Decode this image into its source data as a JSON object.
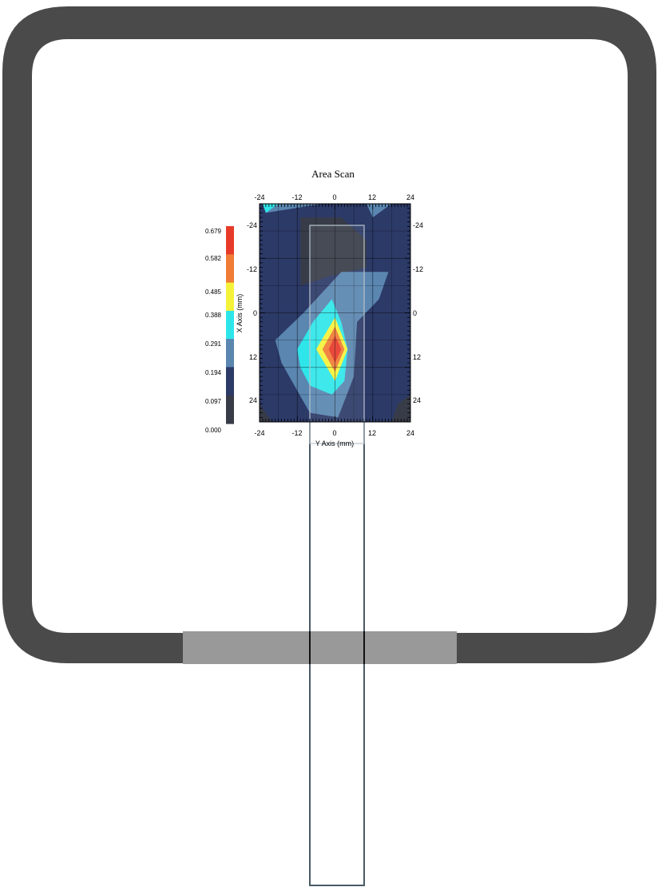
{
  "chart_data": {
    "type": "heatmap",
    "title": "Area Scan",
    "xlabel": "Y Axis (mm)",
    "ylabel": "X Axis (mm)",
    "xlim": [
      -24,
      24
    ],
    "ylim": [
      -24,
      24
    ],
    "x_ticks": [
      "-24",
      "-12",
      "0",
      "12",
      "24"
    ],
    "y_ticks": [
      "-24",
      "-12",
      "0",
      "12",
      "24"
    ],
    "colorbar": {
      "ticks": [
        "0.679",
        "0.582",
        "0.485",
        "0.388",
        "0.291",
        "0.194",
        "0.097",
        "0.000"
      ],
      "colors": [
        "#e83a2a",
        "#f07c35",
        "#f5f23a",
        "#2ee6ea",
        "#5a86b0",
        "#2c3a68",
        "#383c48"
      ]
    },
    "peak": {
      "x": 0,
      "y": 8,
      "value": 0.679
    },
    "regions": [
      {
        "level": "0.000-0.097",
        "color": "#383c48",
        "points": [
          [
            -11,
            -21
          ],
          [
            2,
            -21
          ],
          [
            10,
            -16
          ],
          [
            10,
            -10
          ],
          [
            -2,
            -8
          ],
          [
            -11,
            -6
          ]
        ]
      },
      {
        "level": "0.000-0.097",
        "color": "#383c48",
        "points": [
          [
            -24,
            20
          ],
          [
            -20,
            24
          ],
          [
            -24,
            24
          ]
        ]
      },
      {
        "level": "0.000-0.097",
        "color": "#383c48",
        "points": [
          [
            20,
            20
          ],
          [
            24,
            18
          ],
          [
            24,
            24
          ],
          [
            18,
            24
          ]
        ]
      },
      {
        "level": "0.291-0.388",
        "color": "#5a86b0",
        "points": [
          [
            -20,
            -24
          ],
          [
            -4,
            -24
          ],
          [
            -22,
            -22
          ]
        ]
      },
      {
        "level": "0.291-0.388",
        "color": "#5a86b0",
        "points": [
          [
            10,
            -24
          ],
          [
            18,
            -24
          ],
          [
            12,
            -21
          ]
        ]
      },
      {
        "level": "0.291-0.388",
        "color": "#5a86b0",
        "points": [
          [
            2,
            -9
          ],
          [
            17,
            -9
          ],
          [
            14,
            -3
          ],
          [
            7,
            2
          ],
          [
            6,
            14
          ],
          [
            1,
            23
          ],
          [
            -8,
            22
          ],
          [
            -17,
            11
          ],
          [
            -19,
            6
          ],
          [
            -10,
            0
          ]
        ]
      },
      {
        "level": "0.388-0.485",
        "color": "#2ee6ea",
        "points": [
          [
            -23,
            -24
          ],
          [
            -18,
            -24
          ],
          [
            -22,
            -22
          ]
        ]
      },
      {
        "level": "0.388-0.485",
        "color": "#2ee6ea",
        "points": [
          [
            -1,
            -3
          ],
          [
            2,
            2
          ],
          [
            4,
            8
          ],
          [
            3,
            15
          ],
          [
            -1,
            18
          ],
          [
            -8,
            16
          ],
          [
            -11,
            12
          ],
          [
            -12,
            8
          ],
          [
            -7,
            2
          ]
        ]
      },
      {
        "level": "0.485-0.582",
        "color": "#f5f23a",
        "points": [
          [
            0,
            1
          ],
          [
            4,
            8
          ],
          [
            0,
            15
          ],
          [
            -6,
            8
          ]
        ]
      },
      {
        "level": "0.582-0.679",
        "color": "#f07c35",
        "points": [
          [
            0,
            3
          ],
          [
            3,
            8
          ],
          [
            0,
            13
          ],
          [
            -4,
            8
          ]
        ]
      },
      {
        "level": "0.582-0.679",
        "color": "#e83a2a",
        "points": [
          [
            0,
            5
          ],
          [
            2,
            8
          ],
          [
            0,
            11
          ],
          [
            -2,
            8
          ]
        ]
      }
    ]
  }
}
